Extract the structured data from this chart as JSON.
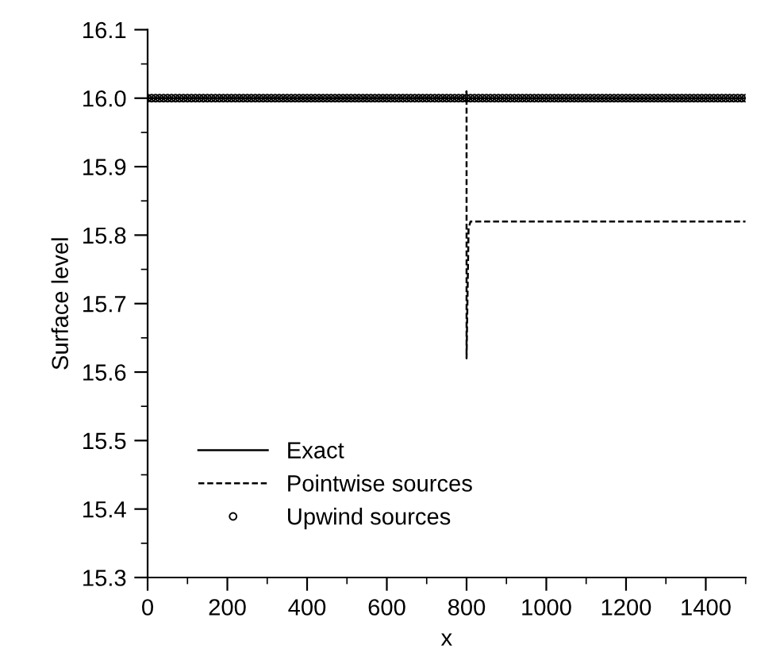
{
  "chart_data": {
    "type": "line",
    "xlabel": "x",
    "ylabel": "Surface level",
    "xlim": [
      0,
      1500
    ],
    "xticks": [
      0,
      200,
      400,
      600,
      800,
      1000,
      1200,
      1400
    ],
    "ylim": [
      15.3,
      16.1
    ],
    "yticks": [
      {
        "value": 15.3,
        "label": "15.3"
      },
      {
        "value": 15.4,
        "label": "15.4"
      },
      {
        "value": 15.5,
        "label": "15.5"
      },
      {
        "value": 15.6,
        "label": "15.6"
      },
      {
        "value": 15.7,
        "label": "15.7"
      },
      {
        "value": 15.8,
        "label": "15.8"
      },
      {
        "value": 15.9,
        "label": "15.9"
      },
      {
        "value": 16.0,
        "label": "16.0"
      },
      {
        "value": 16.1,
        "label": "16.1"
      }
    ],
    "grid": false,
    "legend": "bottom left",
    "series": [
      {
        "name": "Exact",
        "color": "#000000",
        "line_style": "solid",
        "marker": "none",
        "x": [
          0,
          800,
          1500
        ],
        "values": [
          16.0,
          16.0,
          16.0
        ]
      },
      {
        "name": "Pointwise sources",
        "color": "#000000",
        "line_style": "dashed",
        "marker": "none",
        "x": [
          0,
          790,
          800,
          800,
          805,
          810,
          1500
        ],
        "values": [
          16.0,
          16.0,
          16.01,
          15.62,
          15.81,
          15.82,
          15.82
        ]
      },
      {
        "name": "Upwind sources",
        "type": "scatter",
        "color": "#000000",
        "marker": "circle",
        "x": [
          0,
          10,
          20,
          30,
          40,
          50,
          60,
          70,
          80,
          90,
          100,
          110,
          120,
          130,
          140,
          150,
          160,
          170,
          180,
          190,
          200,
          210,
          220,
          230,
          240,
          250,
          260,
          270,
          280,
          290,
          300,
          310,
          320,
          330,
          340,
          350,
          360,
          370,
          380,
          390,
          400,
          410,
          420,
          430,
          440,
          450,
          460,
          470,
          480,
          490,
          500,
          510,
          520,
          530,
          540,
          550,
          560,
          570,
          580,
          590,
          600,
          610,
          620,
          630,
          640,
          650,
          660,
          670,
          680,
          690,
          700,
          710,
          720,
          730,
          740,
          750,
          760,
          770,
          780,
          790,
          800,
          810,
          820,
          830,
          840,
          850,
          860,
          870,
          880,
          890,
          900,
          910,
          920,
          930,
          940,
          950,
          960,
          970,
          980,
          990,
          1000,
          1010,
          1020,
          1030,
          1040,
          1050,
          1060,
          1070,
          1080,
          1090,
          1100,
          1110,
          1120,
          1130,
          1140,
          1150,
          1160,
          1170,
          1180,
          1190,
          1200,
          1210,
          1220,
          1230,
          1240,
          1250,
          1260,
          1270,
          1280,
          1290,
          1300,
          1310,
          1320,
          1330,
          1340,
          1350,
          1360,
          1370,
          1380,
          1390,
          1400,
          1410,
          1420,
          1430,
          1440,
          1450,
          1460,
          1470,
          1480,
          1490,
          1500
        ],
        "values": [
          16.0,
          16.0,
          16.0,
          16.0,
          16.0,
          16.0,
          16.0,
          16.0,
          16.0,
          16.0,
          16.0,
          16.0,
          16.0,
          16.0,
          16.0,
          16.0,
          16.0,
          16.0,
          16.0,
          16.0,
          16.0,
          16.0,
          16.0,
          16.0,
          16.0,
          16.0,
          16.0,
          16.0,
          16.0,
          16.0,
          16.0,
          16.0,
          16.0,
          16.0,
          16.0,
          16.0,
          16.0,
          16.0,
          16.0,
          16.0,
          16.0,
          16.0,
          16.0,
          16.0,
          16.0,
          16.0,
          16.0,
          16.0,
          16.0,
          16.0,
          16.0,
          16.0,
          16.0,
          16.0,
          16.0,
          16.0,
          16.0,
          16.0,
          16.0,
          16.0,
          16.0,
          16.0,
          16.0,
          16.0,
          16.0,
          16.0,
          16.0,
          16.0,
          16.0,
          16.0,
          16.0,
          16.0,
          16.0,
          16.0,
          16.0,
          16.0,
          16.0,
          16.0,
          16.0,
          16.0,
          16.0,
          16.0,
          16.0,
          16.0,
          16.0,
          16.0,
          16.0,
          16.0,
          16.0,
          16.0,
          16.0,
          16.0,
          16.0,
          16.0,
          16.0,
          16.0,
          16.0,
          16.0,
          16.0,
          16.0,
          16.0,
          16.0,
          16.0,
          16.0,
          16.0,
          16.0,
          16.0,
          16.0,
          16.0,
          16.0,
          16.0,
          16.0,
          16.0,
          16.0,
          16.0,
          16.0,
          16.0,
          16.0,
          16.0,
          16.0,
          16.0,
          16.0,
          16.0,
          16.0,
          16.0,
          16.0,
          16.0,
          16.0,
          16.0,
          16.0,
          16.0,
          16.0,
          16.0,
          16.0,
          16.0,
          16.0,
          16.0,
          16.0,
          16.0,
          16.0,
          16.0,
          16.0,
          16.0,
          16.0,
          16.0,
          16.0,
          16.0,
          16.0,
          16.0,
          16.0,
          16.0
        ]
      }
    ]
  }
}
